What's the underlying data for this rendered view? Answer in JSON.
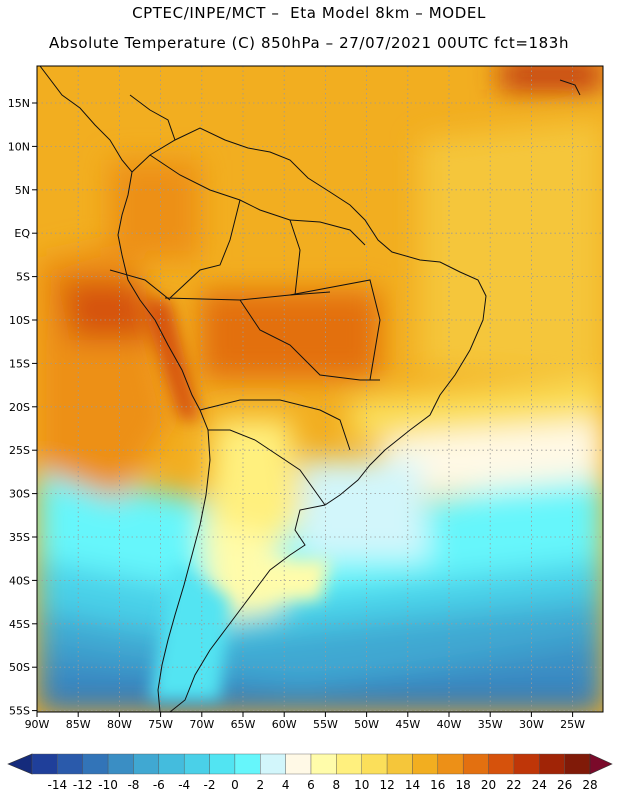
{
  "header": {
    "title_line1": "CPTEC/INPE/MCT –  Eta Model 8km – MODEL",
    "title_line2": "Absolute Temperature (C) 850hPa – 27/07/2021 00UTC fct=183h"
  },
  "map": {
    "lat_labels": [
      "15N",
      "10N",
      "5N",
      "EQ",
      "5S",
      "10S",
      "15S",
      "20S",
      "25S",
      "30S",
      "35S",
      "40S",
      "45S",
      "50S",
      "55S"
    ],
    "lon_labels": [
      "90W",
      "85W",
      "80W",
      "75W",
      "70W",
      "65W",
      "60W",
      "55W",
      "50W",
      "45W",
      "40W",
      "35W",
      "30W",
      "25W"
    ]
  },
  "colorbar": {
    "labels": [
      "-14",
      "-12",
      "-10",
      "-8",
      "-6",
      "-4",
      "-2",
      "0",
      "2",
      "4",
      "6",
      "8",
      "10",
      "12",
      "14",
      "16",
      "18",
      "20",
      "22",
      "24",
      "26",
      "28"
    ],
    "colors": [
      "#1f3f9a",
      "#2a5aab",
      "#3274b8",
      "#3a8ec4",
      "#40a8d2",
      "#44bcdd",
      "#4ad0e8",
      "#52e4f2",
      "#66f6fb",
      "#d2f6fb",
      "#fff9e6",
      "#fffcaa",
      "#fff07e",
      "#fbdf5a",
      "#f5c63a",
      "#f2ae20",
      "#ed9017",
      "#e37010",
      "#d6520c",
      "#bf3608",
      "#a02406",
      "#801a08"
    ],
    "under_color": "#152b7c",
    "over_color": "#7a0a2a"
  }
}
